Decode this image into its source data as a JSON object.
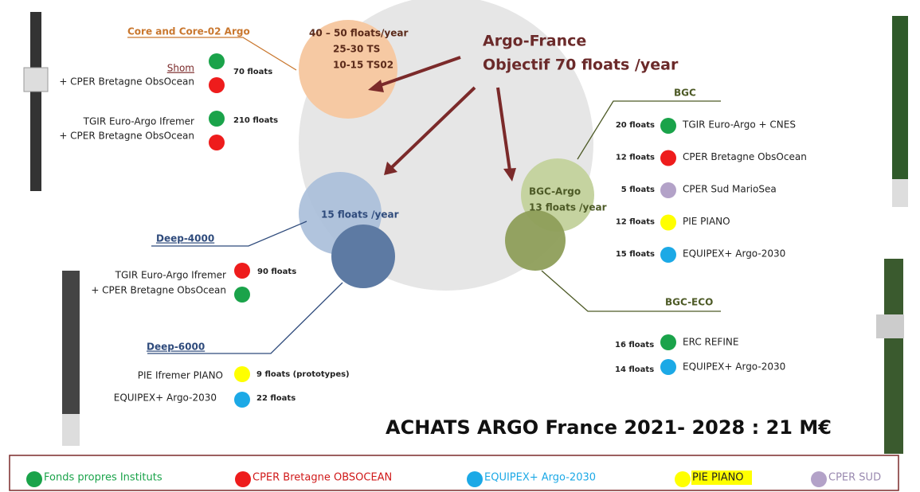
{
  "header": {
    "title": "Argo-France",
    "subtitle": "Objectif 70 floats /year"
  },
  "core": {
    "label": "Core and Core-02 Argo",
    "circle": [
      "40 – 50 floats/year",
      "25-30 TS",
      "10-15 TS02"
    ],
    "rows": [
      {
        "funders": [
          "Shom",
          "+ CPER Bretagne ObsOcean"
        ],
        "floats": "70 floats"
      },
      {
        "funders": [
          "TGIR Euro-Argo Ifremer",
          "+ CPER Bretagne ObsOcean"
        ],
        "floats": "210 floats"
      }
    ]
  },
  "deep": {
    "circle": "15 floats /year",
    "label_4000": "Deep-4000",
    "label_6000": "Deep-6000",
    "rows_4000": [
      {
        "funders": [
          "TGIR Euro-Argo Ifremer",
          "+ CPER Bretagne ObsOcean"
        ],
        "floats": "90 floats"
      }
    ],
    "rows_6000": [
      {
        "funder": "PIE Ifremer PIANO",
        "floats": "9 floats (prototypes)"
      },
      {
        "funder": "EQUIPEX+ Argo-2030",
        "floats": "22 floats"
      }
    ]
  },
  "bgc": {
    "circle": [
      "BGC-Argo",
      "13 floats /year"
    ],
    "label": "BGC",
    "rows": [
      {
        "floats": "20 floats",
        "funder": "TGIR Euro-Argo + CNES"
      },
      {
        "floats": "12 floats",
        "funder": "CPER Bretagne ObsOcean"
      },
      {
        "floats": "5 floats",
        "funder": "CPER Sud MarioSea"
      },
      {
        "floats": "12 floats",
        "funder": "PIE PIANO"
      },
      {
        "floats": "15 floats",
        "funder": "EQUIPEX+ Argo-2030"
      }
    ]
  },
  "bgc_eco": {
    "label": "BGC-ECO",
    "rows": [
      {
        "floats": "16 floats",
        "funder": "ERC REFINE"
      },
      {
        "floats": "14 floats",
        "funder": "EQUIPEX+ Argo-2030"
      }
    ]
  },
  "total": "ACHATS ARGO France 2021- 2028 : 21 M€",
  "legend": [
    "Fonds propres Instituts",
    "CPER Bretagne OBSOCEAN",
    "EQUIPEX+ Argo-2030",
    "PIE PIANO",
    "CPER SUD"
  ]
}
